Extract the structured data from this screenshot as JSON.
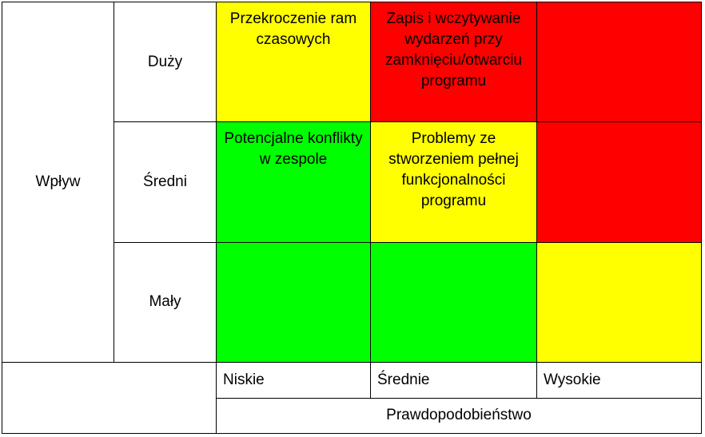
{
  "y_axis": {
    "title": "Wpływ",
    "levels": [
      "Duży",
      "Średni",
      "Mały"
    ]
  },
  "x_axis": {
    "title": "Prawdopodobieństwo",
    "levels": [
      "Niskie",
      "Średnie",
      "Wysokie"
    ]
  },
  "colors": {
    "green": "#00ff00",
    "yellow": "#ffff00",
    "red": "#ff0000"
  },
  "matrix": [
    [
      {
        "color": "yellow",
        "text": "Przekroczenie ram czasowych"
      },
      {
        "color": "red",
        "text": "Zapis i wczytywanie wydarzeń przy zamknięciu/otwarciu programu"
      },
      {
        "color": "red",
        "text": ""
      }
    ],
    [
      {
        "color": "green",
        "text": "Potencjalne konflikty w zespole"
      },
      {
        "color": "yellow",
        "text": "Problemy ze stworzeniem pełnej funkcjonalności programu"
      },
      {
        "color": "red",
        "text": ""
      }
    ],
    [
      {
        "color": "green",
        "text": ""
      },
      {
        "color": "green",
        "text": ""
      },
      {
        "color": "yellow",
        "text": ""
      }
    ]
  ]
}
